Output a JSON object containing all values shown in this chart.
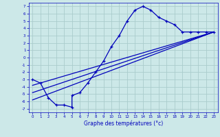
{
  "title": "",
  "xlabel": "Graphe des températures (°c)",
  "ylabel": "",
  "bg_color": "#cce8e8",
  "grid_color": "#aacccc",
  "line_color": "#0000bb",
  "xlim": [
    -0.5,
    23.5
  ],
  "ylim": [
    -7.5,
    7.5
  ],
  "xticks": [
    0,
    1,
    2,
    3,
    4,
    5,
    6,
    7,
    8,
    9,
    10,
    11,
    12,
    13,
    14,
    15,
    16,
    17,
    18,
    19,
    20,
    21,
    22,
    23
  ],
  "yticks": [
    -7,
    -6,
    -5,
    -4,
    -3,
    -2,
    -1,
    0,
    1,
    2,
    3,
    4,
    5,
    6,
    7
  ],
  "main_x": [
    0,
    1,
    2,
    3,
    4,
    5,
    5,
    6,
    7,
    8,
    9,
    10,
    11,
    12,
    13,
    14,
    15,
    16,
    17,
    18,
    19,
    20,
    21,
    22,
    23
  ],
  "main_y": [
    -3.0,
    -3.5,
    -5.5,
    -6.5,
    -6.5,
    -6.8,
    -5.2,
    -4.8,
    -3.5,
    -2.0,
    -0.5,
    1.5,
    3.0,
    5.0,
    6.5,
    7.0,
    6.5,
    5.5,
    5.0,
    4.5,
    3.5,
    3.5,
    3.5,
    3.5,
    3.5
  ],
  "reg_lines": [
    {
      "x": [
        0,
        23
      ],
      "y": [
        -4.8,
        3.5
      ]
    },
    {
      "x": [
        0,
        23
      ],
      "y": [
        -5.8,
        3.5
      ]
    },
    {
      "x": [
        0,
        23
      ],
      "y": [
        -3.8,
        3.5
      ]
    }
  ]
}
